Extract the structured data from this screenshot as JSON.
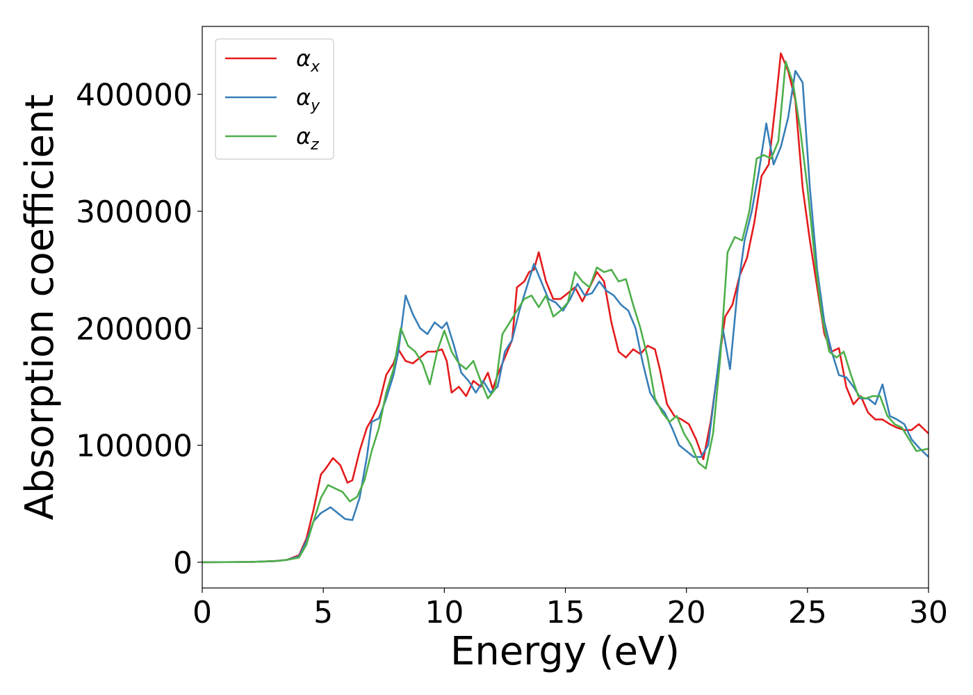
{
  "chart_data": {
    "type": "line",
    "title": "",
    "xlabel": "Energy (eV)",
    "ylabel": "Absorption coefficient",
    "xlim": [
      0,
      30
    ],
    "ylim": [
      -22000,
      458000
    ],
    "x_ticks": [
      "0",
      "5",
      "10",
      "15",
      "20",
      "25",
      "30"
    ],
    "y_ticks": [
      "0",
      "100000",
      "200000",
      "300000",
      "400000"
    ],
    "grid": false,
    "legend_position": "top-left",
    "series": [
      {
        "name": "α",
        "subscript": "x",
        "color": "#e41a1c",
        "points": [
          [
            0,
            0
          ],
          [
            2,
            300
          ],
          [
            3,
            1000
          ],
          [
            3.5,
            2000
          ],
          [
            4,
            6000
          ],
          [
            4.3,
            20000
          ],
          [
            4.6,
            45000
          ],
          [
            4.9,
            75000
          ],
          [
            5.1,
            80000
          ],
          [
            5.4,
            89000
          ],
          [
            5.7,
            83000
          ],
          [
            6.0,
            68000
          ],
          [
            6.2,
            70000
          ],
          [
            6.5,
            95000
          ],
          [
            6.8,
            115000
          ],
          [
            7.0,
            122000
          ],
          [
            7.3,
            135000
          ],
          [
            7.6,
            160000
          ],
          [
            7.9,
            170000
          ],
          [
            8.1,
            182000
          ],
          [
            8.4,
            172000
          ],
          [
            8.7,
            170000
          ],
          [
            9.0,
            175000
          ],
          [
            9.3,
            180000
          ],
          [
            9.6,
            180000
          ],
          [
            9.9,
            182000
          ],
          [
            10.1,
            172000
          ],
          [
            10.3,
            145000
          ],
          [
            10.6,
            150000
          ],
          [
            10.9,
            142000
          ],
          [
            11.2,
            155000
          ],
          [
            11.5,
            150000
          ],
          [
            11.8,
            162000
          ],
          [
            12.0,
            148000
          ],
          [
            12.2,
            160000
          ],
          [
            12.5,
            175000
          ],
          [
            12.8,
            190000
          ],
          [
            13.0,
            235000
          ],
          [
            13.3,
            240000
          ],
          [
            13.5,
            248000
          ],
          [
            13.7,
            250000
          ],
          [
            13.9,
            265000
          ],
          [
            14.2,
            240000
          ],
          [
            14.5,
            225000
          ],
          [
            14.8,
            225000
          ],
          [
            15.1,
            230000
          ],
          [
            15.4,
            235000
          ],
          [
            15.7,
            223000
          ],
          [
            16.0,
            235000
          ],
          [
            16.3,
            248000
          ],
          [
            16.6,
            240000
          ],
          [
            16.9,
            205000
          ],
          [
            17.2,
            180000
          ],
          [
            17.5,
            175000
          ],
          [
            17.8,
            182000
          ],
          [
            18.1,
            178000
          ],
          [
            18.4,
            185000
          ],
          [
            18.7,
            182000
          ],
          [
            18.9,
            165000
          ],
          [
            19.2,
            135000
          ],
          [
            19.5,
            125000
          ],
          [
            19.8,
            122000
          ],
          [
            20.1,
            118000
          ],
          [
            20.4,
            105000
          ],
          [
            20.7,
            88000
          ],
          [
            21.0,
            120000
          ],
          [
            21.3,
            165000
          ],
          [
            21.6,
            210000
          ],
          [
            21.9,
            220000
          ],
          [
            22.2,
            245000
          ],
          [
            22.5,
            260000
          ],
          [
            22.8,
            290000
          ],
          [
            23.1,
            330000
          ],
          [
            23.4,
            340000
          ],
          [
            23.7,
            395000
          ],
          [
            23.9,
            435000
          ],
          [
            24.2,
            420000
          ],
          [
            24.5,
            395000
          ],
          [
            24.8,
            320000
          ],
          [
            25.1,
            275000
          ],
          [
            25.4,
            235000
          ],
          [
            25.7,
            195000
          ],
          [
            26.0,
            180000
          ],
          [
            26.3,
            183000
          ],
          [
            26.6,
            150000
          ],
          [
            26.9,
            135000
          ],
          [
            27.2,
            142000
          ],
          [
            27.5,
            128000
          ],
          [
            27.8,
            122000
          ],
          [
            28.1,
            122000
          ],
          [
            28.4,
            118000
          ],
          [
            28.7,
            115000
          ],
          [
            29.0,
            113000
          ],
          [
            29.3,
            113000
          ],
          [
            29.6,
            118000
          ],
          [
            30.0,
            110000
          ]
        ]
      },
      {
        "name": "α",
        "subscript": "y",
        "color": "#377eb8",
        "points": [
          [
            0,
            0
          ],
          [
            2,
            300
          ],
          [
            3,
            1000
          ],
          [
            3.5,
            2000
          ],
          [
            4,
            5000
          ],
          [
            4.3,
            18000
          ],
          [
            4.6,
            35000
          ],
          [
            4.9,
            42000
          ],
          [
            5.3,
            47000
          ],
          [
            5.6,
            42000
          ],
          [
            5.9,
            37000
          ],
          [
            6.2,
            36000
          ],
          [
            6.5,
            55000
          ],
          [
            6.8,
            90000
          ],
          [
            7.0,
            120000
          ],
          [
            7.3,
            123000
          ],
          [
            7.6,
            140000
          ],
          [
            7.9,
            160000
          ],
          [
            8.1,
            180000
          ],
          [
            8.4,
            228000
          ],
          [
            8.7,
            212000
          ],
          [
            9.0,
            200000
          ],
          [
            9.3,
            195000
          ],
          [
            9.6,
            205000
          ],
          [
            9.9,
            200000
          ],
          [
            10.1,
            205000
          ],
          [
            10.4,
            185000
          ],
          [
            10.7,
            162000
          ],
          [
            11.0,
            155000
          ],
          [
            11.3,
            145000
          ],
          [
            11.6,
            155000
          ],
          [
            11.9,
            145000
          ],
          [
            12.2,
            150000
          ],
          [
            12.5,
            180000
          ],
          [
            12.8,
            190000
          ],
          [
            13.1,
            215000
          ],
          [
            13.4,
            235000
          ],
          [
            13.7,
            255000
          ],
          [
            14.0,
            240000
          ],
          [
            14.3,
            225000
          ],
          [
            14.6,
            222000
          ],
          [
            14.9,
            215000
          ],
          [
            15.2,
            225000
          ],
          [
            15.5,
            238000
          ],
          [
            15.8,
            228000
          ],
          [
            16.1,
            230000
          ],
          [
            16.4,
            240000
          ],
          [
            16.7,
            232000
          ],
          [
            17.0,
            228000
          ],
          [
            17.3,
            220000
          ],
          [
            17.6,
            215000
          ],
          [
            17.9,
            200000
          ],
          [
            18.2,
            170000
          ],
          [
            18.5,
            145000
          ],
          [
            18.8,
            135000
          ],
          [
            19.1,
            128000
          ],
          [
            19.4,
            115000
          ],
          [
            19.7,
            100000
          ],
          [
            20.0,
            95000
          ],
          [
            20.3,
            90000
          ],
          [
            20.6,
            90000
          ],
          [
            20.9,
            100000
          ],
          [
            21.2,
            150000
          ],
          [
            21.5,
            200000
          ],
          [
            21.8,
            165000
          ],
          [
            22.1,
            230000
          ],
          [
            22.4,
            275000
          ],
          [
            22.7,
            300000
          ],
          [
            23.0,
            335000
          ],
          [
            23.3,
            375000
          ],
          [
            23.6,
            340000
          ],
          [
            23.9,
            355000
          ],
          [
            24.2,
            380000
          ],
          [
            24.5,
            420000
          ],
          [
            24.8,
            410000
          ],
          [
            25.1,
            320000
          ],
          [
            25.4,
            250000
          ],
          [
            25.7,
            205000
          ],
          [
            26.0,
            180000
          ],
          [
            26.3,
            160000
          ],
          [
            26.6,
            158000
          ],
          [
            26.9,
            150000
          ],
          [
            27.2,
            140000
          ],
          [
            27.5,
            140000
          ],
          [
            27.8,
            135000
          ],
          [
            28.1,
            152000
          ],
          [
            28.4,
            125000
          ],
          [
            28.7,
            122000
          ],
          [
            29.0,
            118000
          ],
          [
            29.3,
            105000
          ],
          [
            29.6,
            98000
          ],
          [
            30.0,
            90000
          ]
        ]
      },
      {
        "name": "α",
        "subscript": "z",
        "color": "#4daf4a",
        "points": [
          [
            0,
            0
          ],
          [
            2,
            300
          ],
          [
            3,
            1000
          ],
          [
            3.5,
            2000
          ],
          [
            4,
            4000
          ],
          [
            4.3,
            15000
          ],
          [
            4.6,
            35000
          ],
          [
            4.9,
            55000
          ],
          [
            5.2,
            66000
          ],
          [
            5.5,
            63000
          ],
          [
            5.8,
            60000
          ],
          [
            6.1,
            52000
          ],
          [
            6.4,
            56000
          ],
          [
            6.7,
            70000
          ],
          [
            7.0,
            95000
          ],
          [
            7.3,
            115000
          ],
          [
            7.6,
            145000
          ],
          [
            7.9,
            165000
          ],
          [
            8.2,
            200000
          ],
          [
            8.5,
            185000
          ],
          [
            8.8,
            180000
          ],
          [
            9.1,
            170000
          ],
          [
            9.4,
            152000
          ],
          [
            9.7,
            180000
          ],
          [
            10.0,
            198000
          ],
          [
            10.3,
            180000
          ],
          [
            10.6,
            170000
          ],
          [
            10.9,
            165000
          ],
          [
            11.2,
            172000
          ],
          [
            11.5,
            155000
          ],
          [
            11.8,
            140000
          ],
          [
            12.1,
            148000
          ],
          [
            12.4,
            195000
          ],
          [
            12.7,
            205000
          ],
          [
            13.0,
            215000
          ],
          [
            13.3,
            225000
          ],
          [
            13.6,
            228000
          ],
          [
            13.9,
            218000
          ],
          [
            14.2,
            228000
          ],
          [
            14.5,
            210000
          ],
          [
            14.8,
            215000
          ],
          [
            15.1,
            222000
          ],
          [
            15.4,
            248000
          ],
          [
            15.7,
            240000
          ],
          [
            16.0,
            235000
          ],
          [
            16.3,
            252000
          ],
          [
            16.6,
            248000
          ],
          [
            16.9,
            250000
          ],
          [
            17.2,
            240000
          ],
          [
            17.5,
            242000
          ],
          [
            17.8,
            220000
          ],
          [
            18.1,
            200000
          ],
          [
            18.4,
            175000
          ],
          [
            18.7,
            140000
          ],
          [
            19.0,
            128000
          ],
          [
            19.3,
            120000
          ],
          [
            19.6,
            125000
          ],
          [
            19.9,
            110000
          ],
          [
            20.2,
            100000
          ],
          [
            20.5,
            85000
          ],
          [
            20.8,
            80000
          ],
          [
            21.1,
            110000
          ],
          [
            21.4,
            175000
          ],
          [
            21.7,
            265000
          ],
          [
            22.0,
            278000
          ],
          [
            22.3,
            275000
          ],
          [
            22.6,
            300000
          ],
          [
            22.9,
            345000
          ],
          [
            23.2,
            348000
          ],
          [
            23.5,
            345000
          ],
          [
            23.8,
            360000
          ],
          [
            24.1,
            428000
          ],
          [
            24.4,
            410000
          ],
          [
            24.7,
            370000
          ],
          [
            25.0,
            320000
          ],
          [
            25.3,
            260000
          ],
          [
            25.6,
            210000
          ],
          [
            25.9,
            180000
          ],
          [
            26.2,
            175000
          ],
          [
            26.5,
            180000
          ],
          [
            26.8,
            160000
          ],
          [
            27.1,
            142000
          ],
          [
            27.4,
            140000
          ],
          [
            27.7,
            142000
          ],
          [
            28.0,
            142000
          ],
          [
            28.3,
            125000
          ],
          [
            28.6,
            118000
          ],
          [
            28.9,
            115000
          ],
          [
            29.2,
            105000
          ],
          [
            29.5,
            95000
          ],
          [
            30.0,
            97000
          ]
        ]
      }
    ]
  }
}
